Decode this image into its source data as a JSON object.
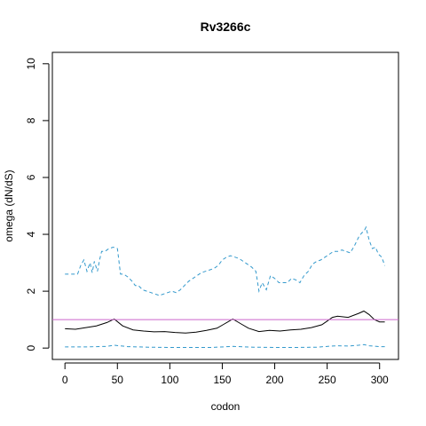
{
  "chart_data": {
    "type": "line",
    "title": "Rv3266c",
    "xlabel": "codon",
    "ylabel": "omega (dN/dS)",
    "xlim": [
      -12,
      318
    ],
    "ylim": [
      -0.4,
      10.4
    ],
    "x_ticks": [
      0,
      50,
      100,
      150,
      200,
      250,
      300
    ],
    "x_tick_labels": [
      "0",
      "50",
      "100",
      "150",
      "200",
      "250",
      "300"
    ],
    "y_ticks": [
      0,
      2,
      4,
      6,
      8,
      10
    ],
    "y_tick_labels": [
      "0",
      "2",
      "4",
      "6",
      "8",
      "10"
    ],
    "grid": false,
    "reference_line": {
      "y": 1.0,
      "color": "#cc66cc"
    },
    "series": [
      {
        "style": "solid",
        "color": "#000000",
        "x": [
          0,
          10,
          20,
          30,
          40,
          47,
          55,
          65,
          75,
          85,
          95,
          105,
          115,
          125,
          135,
          145,
          152,
          160,
          168,
          175,
          185,
          195,
          205,
          215,
          225,
          235,
          245,
          250,
          255,
          260,
          270,
          280,
          285,
          290,
          295,
          300,
          305
        ],
        "values": [
          0.68,
          0.66,
          0.72,
          0.78,
          0.9,
          1.02,
          0.78,
          0.64,
          0.6,
          0.57,
          0.58,
          0.55,
          0.53,
          0.56,
          0.62,
          0.7,
          0.85,
          1.02,
          0.85,
          0.7,
          0.58,
          0.62,
          0.6,
          0.64,
          0.66,
          0.72,
          0.82,
          0.95,
          1.08,
          1.12,
          1.08,
          1.22,
          1.3,
          1.18,
          1.0,
          0.92,
          0.92
        ]
      },
      {
        "style": "dashed",
        "color": "#3399cc",
        "x": [
          0,
          12,
          15,
          18,
          21,
          24,
          26,
          28,
          31,
          33,
          35,
          38,
          40,
          42,
          46,
          50,
          53,
          56,
          60,
          64,
          67,
          70,
          74,
          78,
          82,
          86,
          90,
          94,
          98,
          102,
          106,
          110,
          114,
          118,
          122,
          126,
          130,
          134,
          138,
          142,
          146,
          150,
          154,
          158,
          162,
          166,
          170,
          174,
          178,
          182,
          185,
          188,
          192,
          196,
          200,
          204,
          208,
          212,
          216,
          220,
          224,
          228,
          232,
          236,
          240,
          244,
          248,
          252,
          256,
          260,
          264,
          268,
          272,
          276,
          280,
          283,
          285,
          287,
          290,
          293,
          296,
          299,
          302,
          305
        ],
        "values": [
          2.6,
          2.6,
          2.9,
          3.1,
          2.7,
          3.0,
          2.65,
          3.05,
          2.7,
          3.1,
          3.4,
          3.4,
          3.45,
          3.5,
          3.55,
          3.5,
          2.6,
          2.6,
          2.5,
          2.35,
          2.2,
          2.2,
          2.05,
          2.0,
          1.95,
          1.9,
          1.85,
          1.9,
          1.95,
          2.0,
          1.95,
          2.05,
          2.2,
          2.35,
          2.45,
          2.55,
          2.65,
          2.7,
          2.75,
          2.8,
          2.9,
          3.1,
          3.2,
          3.25,
          3.2,
          3.15,
          3.05,
          2.95,
          2.85,
          2.7,
          2.0,
          2.3,
          2.05,
          2.55,
          2.45,
          2.3,
          2.3,
          2.3,
          2.45,
          2.4,
          2.3,
          2.55,
          2.7,
          2.95,
          3.05,
          3.1,
          3.2,
          3.3,
          3.4,
          3.4,
          3.45,
          3.4,
          3.35,
          3.6,
          3.9,
          4.05,
          4.1,
          4.25,
          3.8,
          3.5,
          3.55,
          3.3,
          3.2,
          2.9
        ]
      },
      {
        "style": "dashed",
        "color": "#3399cc",
        "x": [
          0,
          20,
          40,
          47,
          60,
          80,
          100,
          120,
          140,
          160,
          180,
          200,
          220,
          240,
          255,
          260,
          270,
          280,
          285,
          290,
          300,
          305
        ],
        "values": [
          0.04,
          0.04,
          0.06,
          0.1,
          0.05,
          0.03,
          0.02,
          0.02,
          0.02,
          0.06,
          0.03,
          0.02,
          0.02,
          0.03,
          0.07,
          0.08,
          0.07,
          0.1,
          0.12,
          0.08,
          0.05,
          0.05
        ]
      }
    ]
  }
}
